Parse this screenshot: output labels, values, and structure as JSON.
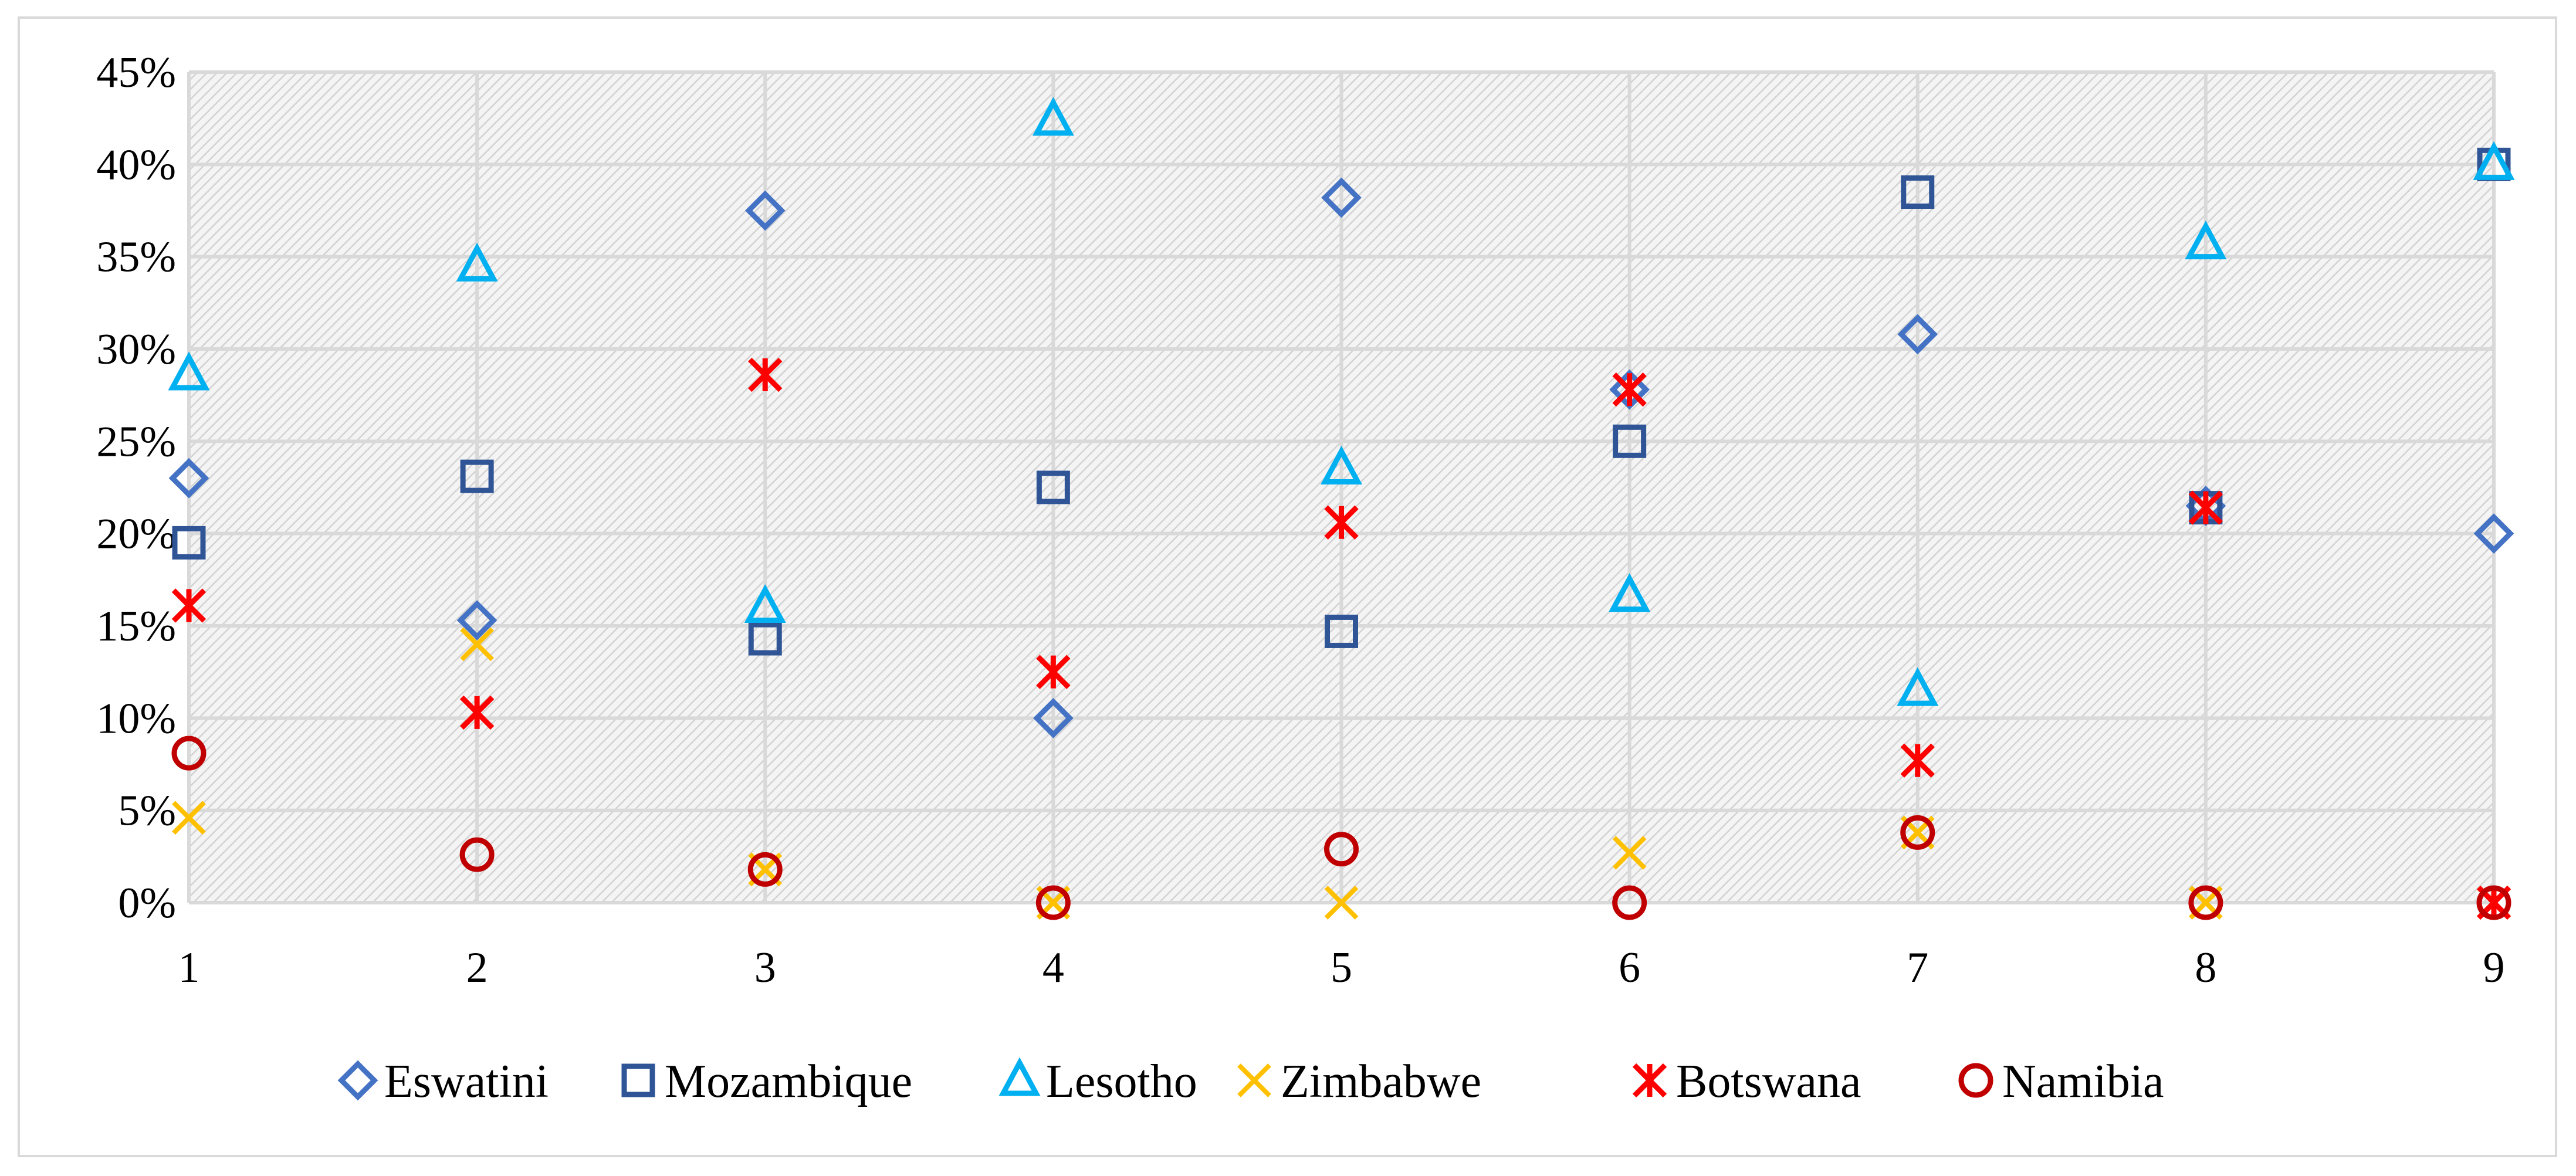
{
  "chart_data": {
    "type": "scatter",
    "title": "",
    "xlabel": "",
    "ylabel": "",
    "x": [
      1,
      2,
      3,
      4,
      5,
      6,
      7,
      8,
      9
    ],
    "x_tick_labels": [
      "1",
      "2",
      "3",
      "4",
      "5",
      "6",
      "7",
      "8",
      "9"
    ],
    "xlim": [
      1,
      9
    ],
    "ylim": [
      0,
      45
    ],
    "y_tick_labels": [
      "0%",
      "5%",
      "10%",
      "15%",
      "20%",
      "25%",
      "30%",
      "35%",
      "40%",
      "45%"
    ],
    "grid": true,
    "legend_position": "bottom",
    "series": [
      {
        "name": "Eswatini",
        "marker": "diamond",
        "color": "#4472C4",
        "values": [
          23.0,
          15.3,
          37.5,
          10.0,
          38.2,
          27.8,
          30.8,
          21.5,
          20.0
        ]
      },
      {
        "name": "Mozambique",
        "marker": "square",
        "color": "#2F5597",
        "values": [
          19.5,
          23.1,
          14.3,
          22.5,
          14.7,
          25.0,
          38.5,
          21.4,
          40.0
        ]
      },
      {
        "name": "Lesotho",
        "marker": "triangle",
        "color": "#00B0F0",
        "values": [
          28.6,
          34.5,
          16.0,
          42.4,
          23.5,
          16.6,
          11.5,
          35.7,
          40.0
        ]
      },
      {
        "name": "Zimbabwe",
        "marker": "x",
        "color": "#FFC000",
        "values": [
          4.6,
          14.0,
          1.8,
          0.0,
          0.0,
          2.7,
          3.8,
          0.0,
          0.0
        ]
      },
      {
        "name": "Botswana",
        "marker": "star",
        "color": "#FF0000",
        "values": [
          16.1,
          10.3,
          28.6,
          12.5,
          20.6,
          27.8,
          7.7,
          21.4,
          0.0
        ]
      },
      {
        "name": "Namibia",
        "marker": "circle",
        "color": "#C00000",
        "values": [
          8.1,
          2.6,
          1.8,
          0.0,
          2.9,
          0.0,
          3.8,
          0.0,
          0.0
        ]
      }
    ]
  }
}
